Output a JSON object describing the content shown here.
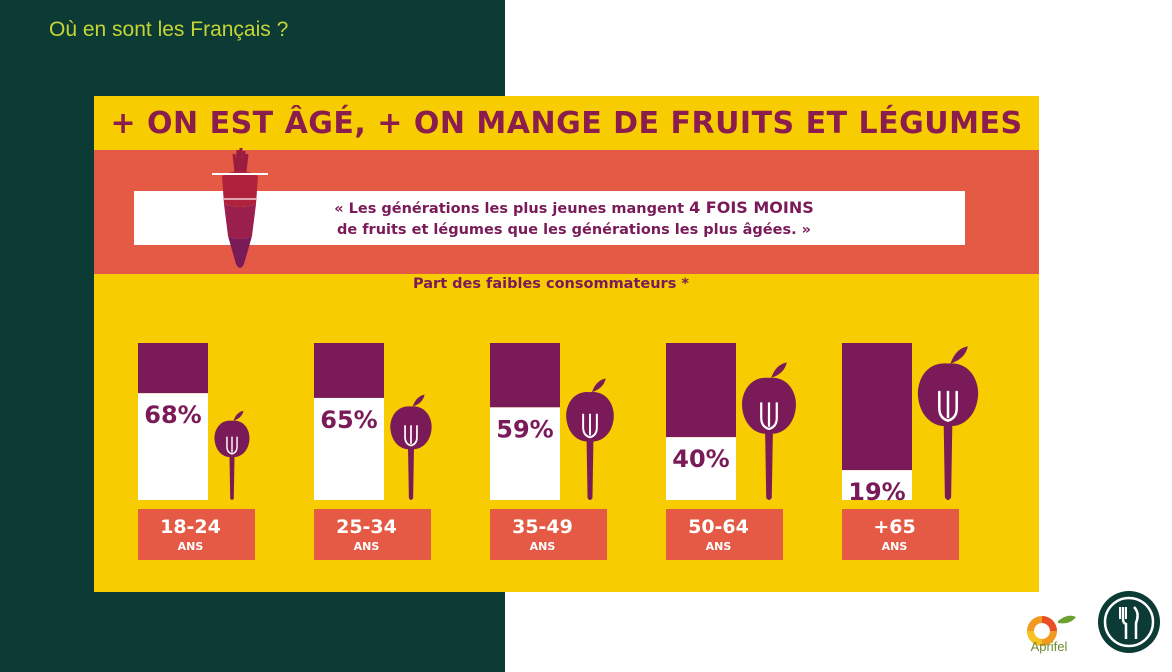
{
  "slide_title": "Où en sont les Français ?",
  "headline": "+ ON EST ÂGÉ, + ON MANGE DE FRUITS ET LÉGUMES",
  "quote": {
    "line1_prefix": "« Les générations les plus jeunes mangent ",
    "line1_emphasis": "4 FOIS MOINS",
    "line2": "de fruits et légumes que les générations les plus âgées. »"
  },
  "chart_data": {
    "type": "bar",
    "title": "Part des faibles consommateurs *",
    "categories": [
      "18-24",
      "25-34",
      "35-49",
      "50-64",
      "+65"
    ],
    "category_unit": "ANS",
    "values": [
      68,
      65,
      59,
      40,
      19
    ],
    "value_labels": [
      "68%",
      "65%",
      "59%",
      "40%",
      "19%"
    ],
    "ylim": [
      0,
      100
    ],
    "grid": false,
    "colors": {
      "filled": "#ffffff",
      "remainder": "#7a1a58",
      "label_box": "#e45a45",
      "background": "#f7cc00"
    }
  },
  "footer": {
    "logo_left_text": "Aprifel",
    "logo_left_icon": "aprifel-logo",
    "logo_right_icon": "fork-knife-circle-icon"
  },
  "colors": {
    "left_panel": "#0c3a35",
    "title_accent": "#c6d536",
    "headline": "#8a1c4e",
    "band": "#e45a45",
    "yellow": "#f7cc00",
    "plum": "#7a1a58"
  }
}
